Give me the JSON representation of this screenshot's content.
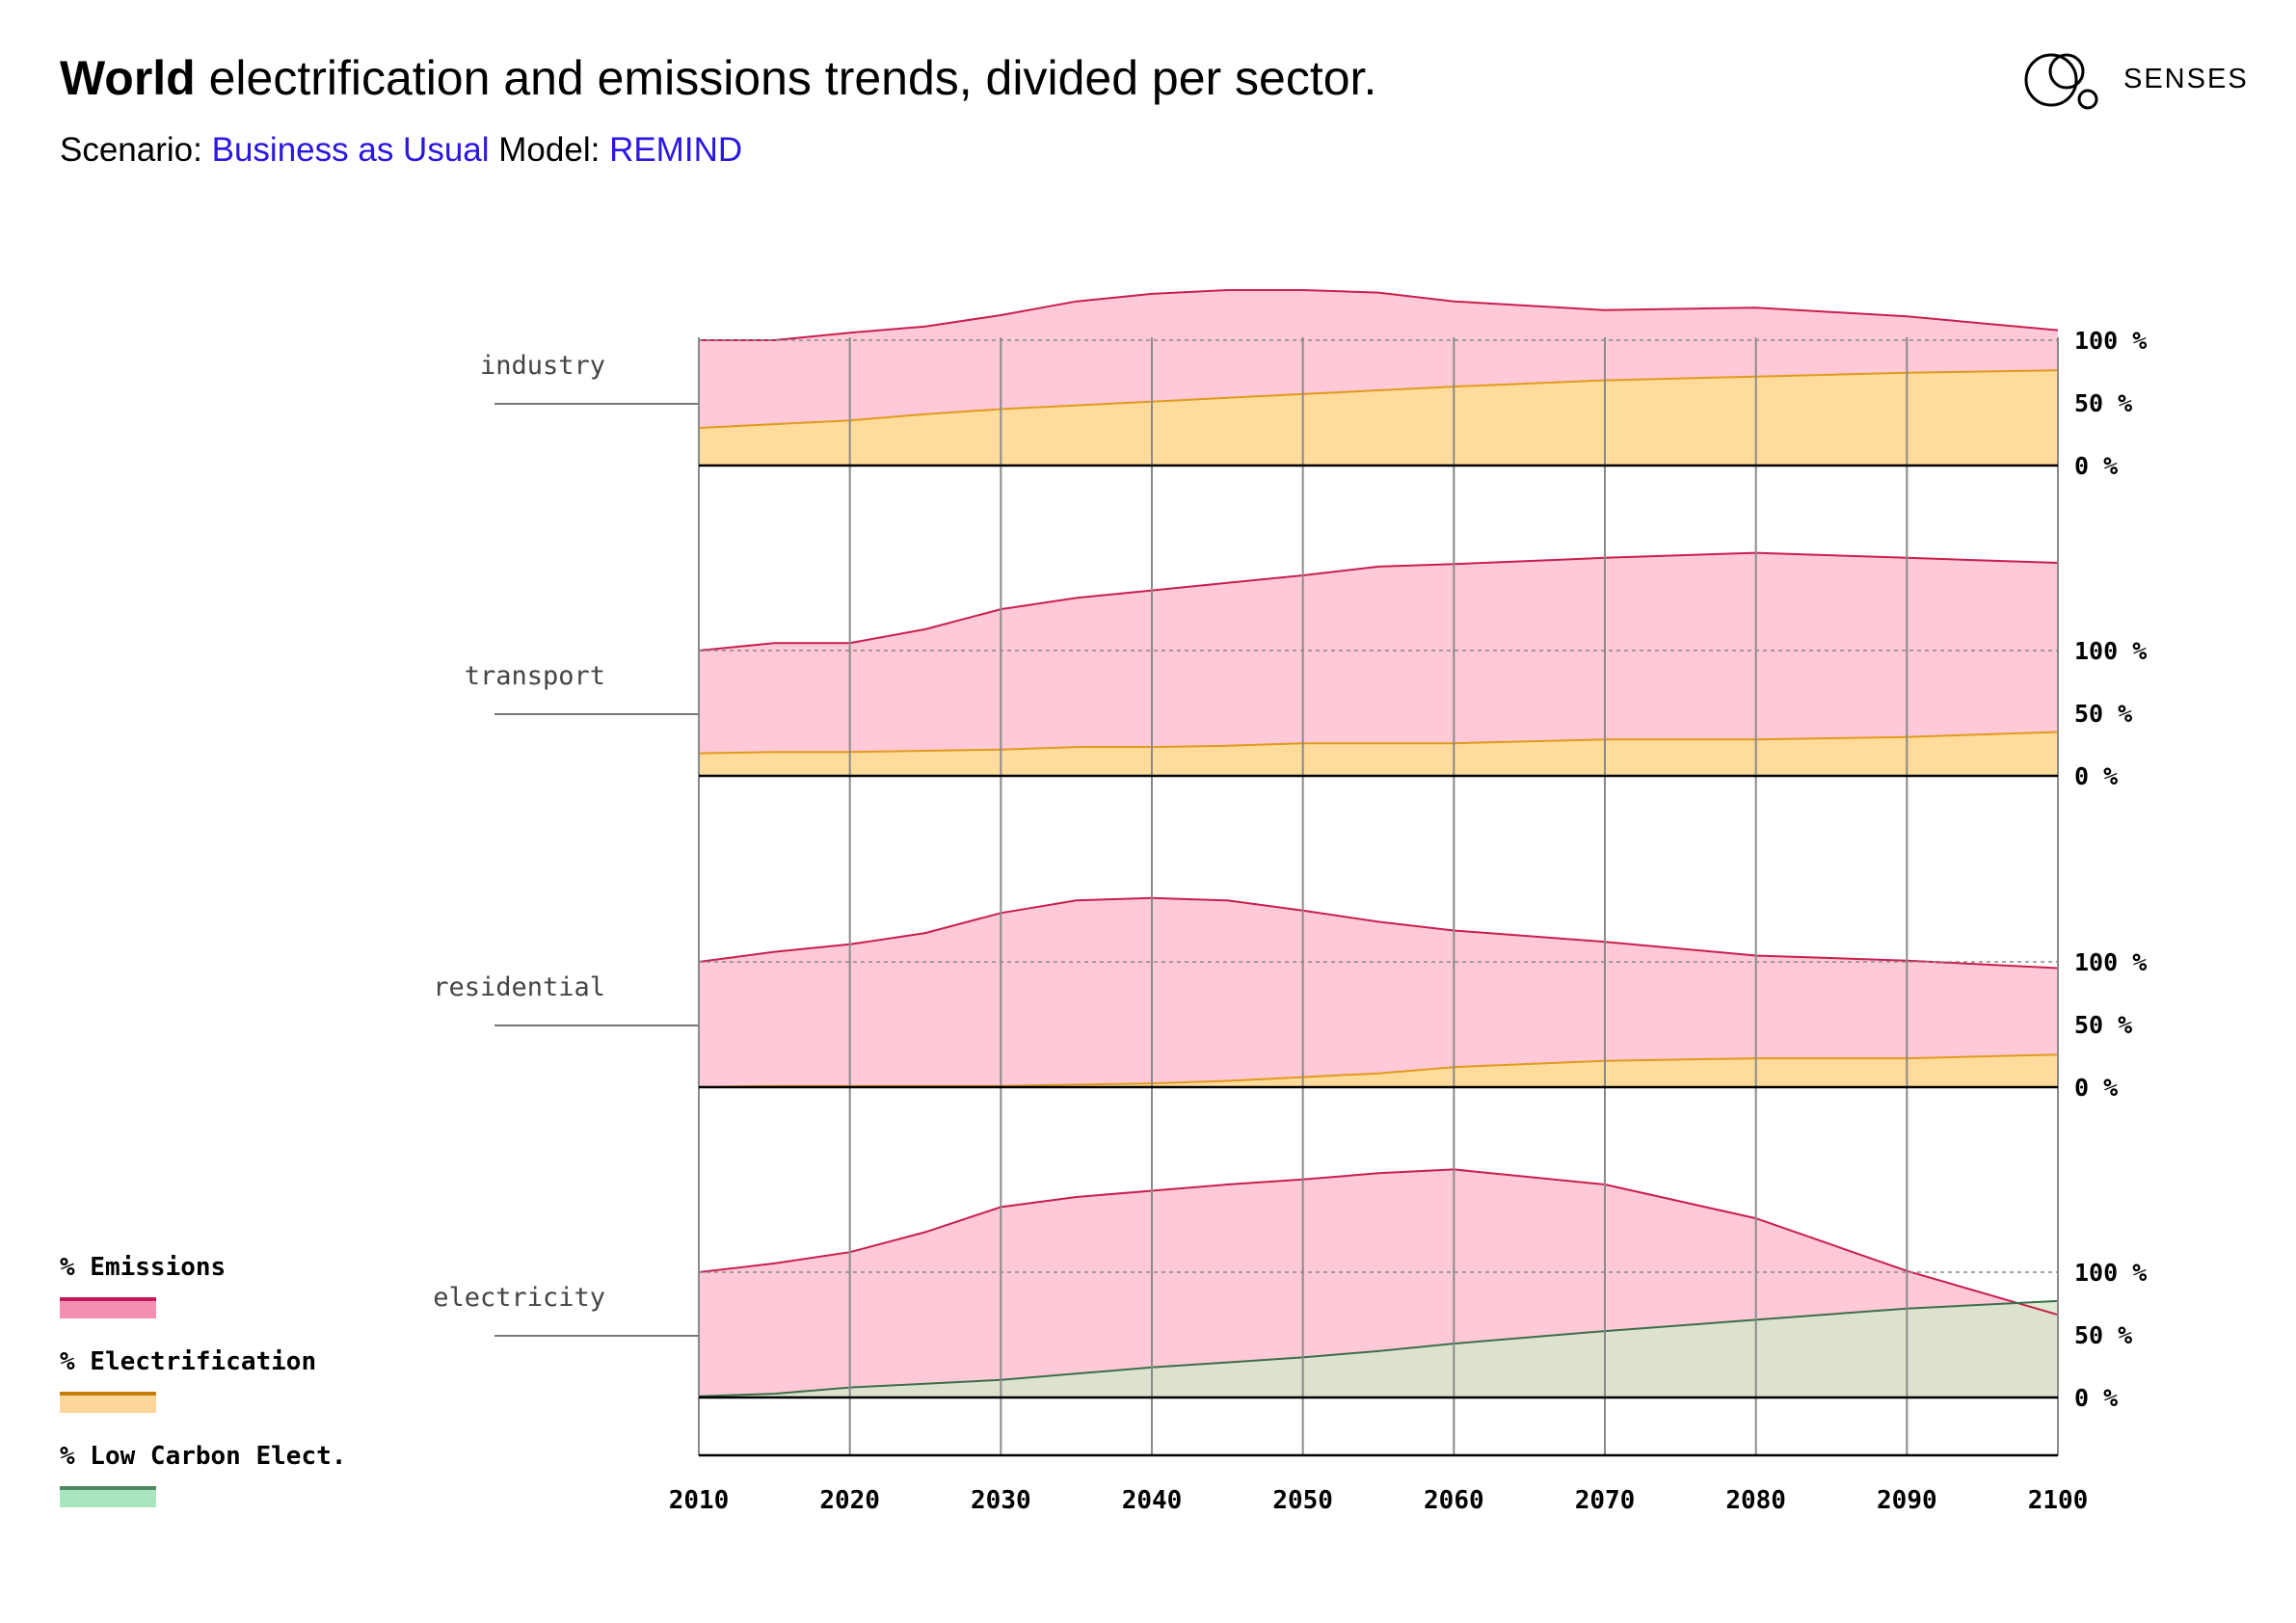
{
  "header": {
    "title_bold": "World",
    "title_rest": " electrification and emissions trends, divided per sector.",
    "scenario_label": "Scenario:",
    "scenario_value": "Business as Usual",
    "model_label": "Model:",
    "model_value": "REMIND",
    "logo_text": "SENSES"
  },
  "legend": [
    {
      "label": "% Emissions",
      "line_color": "#c2185b",
      "fill_color": "#f48fb1"
    },
    {
      "label": "% Electrification",
      "line_color": "#c77c0e",
      "fill_color": "#ffd699"
    },
    {
      "label": "% Low Carbon Elect.",
      "line_color": "#4e8a5e",
      "fill_color": "#a8e6bf"
    }
  ],
  "colors": {
    "emissions_fill": "#ffc9d8",
    "emissions_line": "#c81f4e",
    "electrification_fill": "#ffdc9c",
    "electrification_line": "#e19a1e",
    "lowcarbon_fill": "#d7e6cd",
    "lowcarbon_line": "#3d6e4a"
  },
  "chart_data": {
    "type": "area",
    "x": [
      2010,
      2015,
      2020,
      2025,
      2030,
      2035,
      2040,
      2045,
      2050,
      2055,
      2060,
      2070,
      2080,
      2090,
      2100
    ],
    "xticks": [
      "2010",
      "2020",
      "2030",
      "2040",
      "2050",
      "2060",
      "2070",
      "2080",
      "2090",
      "2100"
    ],
    "yticks": [
      "100 %",
      "50 %",
      "0 %"
    ],
    "panels": [
      {
        "name": "industry",
        "series": [
          {
            "key": "emissions",
            "values": [
              100,
              100,
              106,
              111,
              120,
              131,
              137,
              140,
              140,
              138,
              131,
              124,
              126,
              119,
              108
            ]
          },
          {
            "key": "electrification",
            "values": [
              30,
              33,
              36,
              41,
              45,
              48,
              51,
              54,
              57,
              60,
              63,
              68,
              71,
              74,
              76
            ]
          }
        ]
      },
      {
        "name": "transport",
        "series": [
          {
            "key": "emissions",
            "values": [
              100,
              106,
              106,
              117,
              133,
              142,
              148,
              154,
              160,
              167,
              169,
              174,
              178,
              174,
              170
            ]
          },
          {
            "key": "electrification",
            "values": [
              18,
              19,
              19,
              20,
              21,
              23,
              23,
              24,
              26,
              26,
              26,
              29,
              29,
              31,
              35
            ]
          }
        ]
      },
      {
        "name": "residential",
        "series": [
          {
            "key": "emissions",
            "values": [
              100,
              108,
              114,
              123,
              139,
              149,
              151,
              149,
              141,
              132,
              125,
              116,
              105,
              101,
              95
            ]
          },
          {
            "key": "electrification",
            "values": [
              0,
              1,
              1,
              1,
              1,
              2,
              3,
              5,
              8,
              11,
              16,
              21,
              23,
              23,
              26
            ]
          }
        ]
      },
      {
        "name": "electricity",
        "series": [
          {
            "key": "emissions",
            "values": [
              100,
              107,
              116,
              132,
              152,
              160,
              165,
              170,
              174,
              179,
              182,
              170,
              143,
              101,
              66
            ]
          },
          {
            "key": "lowcarbon",
            "values": [
              1,
              3,
              8,
              11,
              14,
              19,
              24,
              28,
              32,
              37,
              43,
              53,
              62,
              71,
              77
            ]
          }
        ]
      }
    ]
  }
}
